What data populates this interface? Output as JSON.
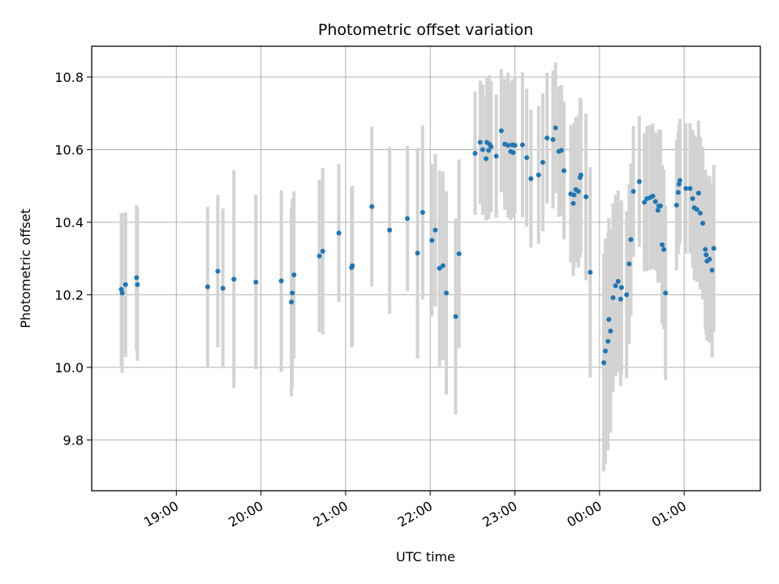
{
  "chart_data": {
    "type": "scatter",
    "title": "Photometric offset variation",
    "xlabel": "UTC time",
    "ylabel": "Photometric offset",
    "x_unit": "UTC time (hours, 18.0 = 18:00; values past 24 are after midnight)",
    "xlim": [
      18.0,
      25.9
    ],
    "ylim": [
      9.66,
      10.885
    ],
    "x_ticks": [
      {
        "value": 19,
        "label": "19:00"
      },
      {
        "value": 20,
        "label": "20:00"
      },
      {
        "value": 21,
        "label": "21:00"
      },
      {
        "value": 22,
        "label": "22:00"
      },
      {
        "value": 23,
        "label": "23:00"
      },
      {
        "value": 24,
        "label": "00:00"
      },
      {
        "value": 25,
        "label": "01:00"
      }
    ],
    "y_ticks": [
      {
        "value": 9.8,
        "label": "9.8"
      },
      {
        "value": 10.0,
        "label": "10.0"
      },
      {
        "value": 10.2,
        "label": "10.2"
      },
      {
        "value": 10.4,
        "label": "10.4"
      },
      {
        "value": 10.6,
        "label": "10.6"
      },
      {
        "value": 10.8,
        "label": "10.8"
      }
    ],
    "grid": true,
    "marker_color": "#1f77b4",
    "errorbar_color": "#d3d3d3",
    "series": [
      {
        "points": [
          {
            "x": 18.35,
            "y": 10.215,
            "err": 0.21
          },
          {
            "x": 18.36,
            "y": 10.205,
            "err": 0.22
          },
          {
            "x": 18.4,
            "y": 10.228,
            "err": 0.2
          },
          {
            "x": 18.53,
            "y": 10.247,
            "err": 0.2
          },
          {
            "x": 18.54,
            "y": 10.228,
            "err": 0.21
          },
          {
            "x": 19.37,
            "y": 10.222,
            "err": 0.22
          },
          {
            "x": 19.49,
            "y": 10.265,
            "err": 0.21
          },
          {
            "x": 19.55,
            "y": 10.218,
            "err": 0.22
          },
          {
            "x": 19.68,
            "y": 10.243,
            "err": 0.3
          },
          {
            "x": 19.94,
            "y": 10.235,
            "err": 0.24
          },
          {
            "x": 20.24,
            "y": 10.238,
            "err": 0.25
          },
          {
            "x": 20.36,
            "y": 10.18,
            "err": 0.26
          },
          {
            "x": 20.37,
            "y": 10.205,
            "err": 0.26
          },
          {
            "x": 20.39,
            "y": 10.255,
            "err": 0.23
          },
          {
            "x": 20.69,
            "y": 10.307,
            "err": 0.21
          },
          {
            "x": 20.73,
            "y": 10.32,
            "err": 0.23
          },
          {
            "x": 20.92,
            "y": 10.37,
            "err": 0.19
          },
          {
            "x": 21.07,
            "y": 10.275,
            "err": 0.22
          },
          {
            "x": 21.08,
            "y": 10.28,
            "err": 0.22
          },
          {
            "x": 21.31,
            "y": 10.443,
            "err": 0.22
          },
          {
            "x": 21.52,
            "y": 10.378,
            "err": 0.23
          },
          {
            "x": 21.73,
            "y": 10.41,
            "err": 0.2
          },
          {
            "x": 21.85,
            "y": 10.315,
            "err": 0.29
          },
          {
            "x": 21.91,
            "y": 10.427,
            "err": 0.24
          },
          {
            "x": 22.02,
            "y": 10.35,
            "err": 0.21
          },
          {
            "x": 22.06,
            "y": 10.378,
            "err": 0.21
          },
          {
            "x": 22.11,
            "y": 10.273,
            "err": 0.27
          },
          {
            "x": 22.15,
            "y": 10.28,
            "err": 0.26
          },
          {
            "x": 22.19,
            "y": 10.205,
            "err": 0.28
          },
          {
            "x": 22.3,
            "y": 10.14,
            "err": 0.27
          },
          {
            "x": 22.34,
            "y": 10.313,
            "err": 0.26
          },
          {
            "x": 22.53,
            "y": 10.59,
            "err": 0.17
          },
          {
            "x": 22.59,
            "y": 10.62,
            "err": 0.17
          },
          {
            "x": 22.62,
            "y": 10.6,
            "err": 0.18
          },
          {
            "x": 22.66,
            "y": 10.575,
            "err": 0.17
          },
          {
            "x": 22.67,
            "y": 10.62,
            "err": 0.18
          },
          {
            "x": 22.69,
            "y": 10.598,
            "err": 0.19
          },
          {
            "x": 22.7,
            "y": 10.615,
            "err": 0.19
          },
          {
            "x": 22.72,
            "y": 10.608,
            "err": 0.18
          },
          {
            "x": 22.78,
            "y": 10.582,
            "err": 0.17
          },
          {
            "x": 22.84,
            "y": 10.652,
            "err": 0.17
          },
          {
            "x": 22.88,
            "y": 10.615,
            "err": 0.18
          },
          {
            "x": 22.92,
            "y": 10.612,
            "err": 0.2
          },
          {
            "x": 22.95,
            "y": 10.595,
            "err": 0.19
          },
          {
            "x": 22.97,
            "y": 10.613,
            "err": 0.18
          },
          {
            "x": 22.98,
            "y": 10.592,
            "err": 0.18
          },
          {
            "x": 23.0,
            "y": 10.612,
            "err": 0.19
          },
          {
            "x": 23.09,
            "y": 10.613,
            "err": 0.2
          },
          {
            "x": 23.14,
            "y": 10.578,
            "err": 0.19
          },
          {
            "x": 23.19,
            "y": 10.52,
            "err": 0.19
          },
          {
            "x": 23.28,
            "y": 10.53,
            "err": 0.19
          },
          {
            "x": 23.33,
            "y": 10.565,
            "err": 0.19
          },
          {
            "x": 23.38,
            "y": 10.632,
            "err": 0.18
          },
          {
            "x": 23.45,
            "y": 10.628,
            "err": 0.19
          },
          {
            "x": 23.48,
            "y": 10.66,
            "err": 0.18
          },
          {
            "x": 23.52,
            "y": 10.595,
            "err": 0.18
          },
          {
            "x": 23.55,
            "y": 10.598,
            "err": 0.18
          },
          {
            "x": 23.58,
            "y": 10.542,
            "err": 0.19
          },
          {
            "x": 23.66,
            "y": 10.478,
            "err": 0.19
          },
          {
            "x": 23.69,
            "y": 10.452,
            "err": 0.2
          },
          {
            "x": 23.7,
            "y": 10.475,
            "err": 0.2
          },
          {
            "x": 23.72,
            "y": 10.49,
            "err": 0.2
          },
          {
            "x": 23.75,
            "y": 10.485,
            "err": 0.21
          },
          {
            "x": 23.77,
            "y": 10.523,
            "err": 0.22
          },
          {
            "x": 23.78,
            "y": 10.53,
            "err": 0.21
          },
          {
            "x": 23.84,
            "y": 10.47,
            "err": 0.23
          },
          {
            "x": 23.89,
            "y": 10.262,
            "err": 0.29
          },
          {
            "x": 24.05,
            "y": 10.013,
            "err": 0.3
          },
          {
            "x": 24.07,
            "y": 10.045,
            "err": 0.31
          },
          {
            "x": 24.1,
            "y": 10.072,
            "err": 0.3
          },
          {
            "x": 24.11,
            "y": 10.132,
            "err": 0.28
          },
          {
            "x": 24.13,
            "y": 10.1,
            "err": 0.28
          },
          {
            "x": 24.16,
            "y": 10.192,
            "err": 0.26
          },
          {
            "x": 24.19,
            "y": 10.225,
            "err": 0.25
          },
          {
            "x": 24.22,
            "y": 10.237,
            "err": 0.25
          },
          {
            "x": 24.25,
            "y": 10.188,
            "err": 0.24
          },
          {
            "x": 24.26,
            "y": 10.22,
            "err": 0.24
          },
          {
            "x": 24.32,
            "y": 10.2,
            "err": 0.23
          },
          {
            "x": 24.35,
            "y": 10.285,
            "err": 0.22
          },
          {
            "x": 24.37,
            "y": 10.352,
            "err": 0.21
          },
          {
            "x": 24.4,
            "y": 10.485,
            "err": 0.18
          },
          {
            "x": 24.47,
            "y": 10.512,
            "err": 0.18
          },
          {
            "x": 24.53,
            "y": 10.455,
            "err": 0.19
          },
          {
            "x": 24.56,
            "y": 10.465,
            "err": 0.2
          },
          {
            "x": 24.6,
            "y": 10.468,
            "err": 0.2
          },
          {
            "x": 24.63,
            "y": 10.472,
            "err": 0.2
          },
          {
            "x": 24.66,
            "y": 10.457,
            "err": 0.19
          },
          {
            "x": 24.69,
            "y": 10.433,
            "err": 0.2
          },
          {
            "x": 24.7,
            "y": 10.445,
            "err": 0.21
          },
          {
            "x": 24.72,
            "y": 10.445,
            "err": 0.21
          },
          {
            "x": 24.74,
            "y": 10.338,
            "err": 0.22
          },
          {
            "x": 24.76,
            "y": 10.325,
            "err": 0.22
          },
          {
            "x": 24.78,
            "y": 10.205,
            "err": 0.24
          },
          {
            "x": 24.91,
            "y": 10.447,
            "err": 0.18
          },
          {
            "x": 24.93,
            "y": 10.482,
            "err": 0.17
          },
          {
            "x": 24.94,
            "y": 10.505,
            "err": 0.17
          },
          {
            "x": 24.95,
            "y": 10.515,
            "err": 0.17
          },
          {
            "x": 25.02,
            "y": 10.493,
            "err": 0.18
          },
          {
            "x": 25.07,
            "y": 10.493,
            "err": 0.18
          },
          {
            "x": 25.1,
            "y": 10.465,
            "err": 0.19
          },
          {
            "x": 25.12,
            "y": 10.44,
            "err": 0.2
          },
          {
            "x": 25.15,
            "y": 10.435,
            "err": 0.2
          },
          {
            "x": 25.17,
            "y": 10.48,
            "err": 0.2
          },
          {
            "x": 25.19,
            "y": 10.425,
            "err": 0.21
          },
          {
            "x": 25.22,
            "y": 10.397,
            "err": 0.21
          },
          {
            "x": 25.25,
            "y": 10.325,
            "err": 0.22
          },
          {
            "x": 25.26,
            "y": 10.31,
            "err": 0.22
          },
          {
            "x": 25.27,
            "y": 10.293,
            "err": 0.22
          },
          {
            "x": 25.3,
            "y": 10.298,
            "err": 0.23
          },
          {
            "x": 25.33,
            "y": 10.268,
            "err": 0.24
          },
          {
            "x": 25.35,
            "y": 10.328,
            "err": 0.23
          }
        ]
      }
    ]
  }
}
